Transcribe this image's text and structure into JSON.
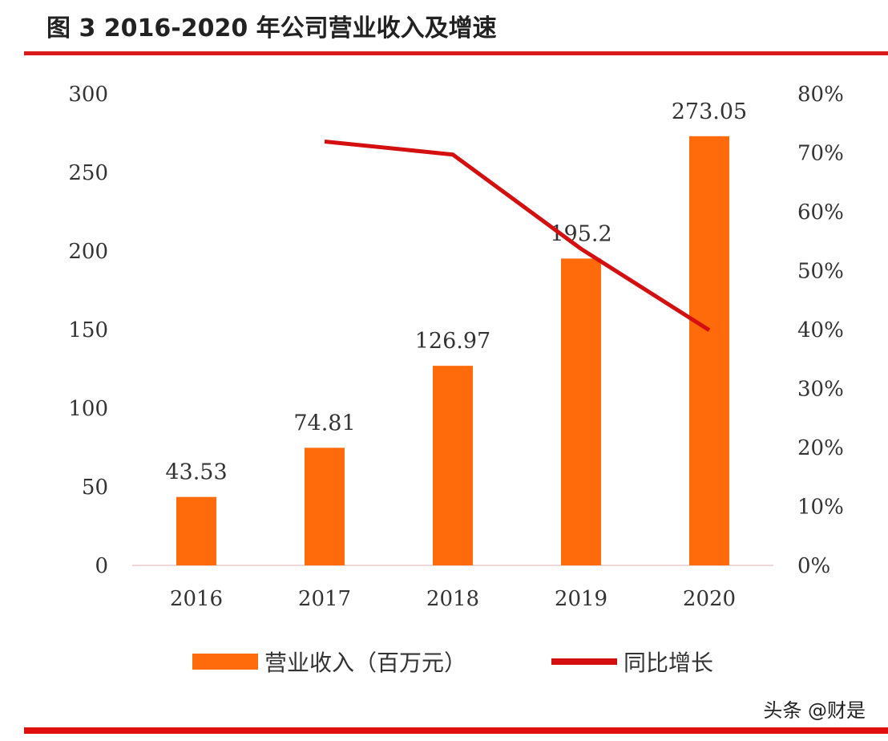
{
  "chart_data": {
    "type": "bar",
    "title": "图 3 2016-2020 年公司营业收入及增速",
    "categories": [
      "2016",
      "2017",
      "2018",
      "2019",
      "2020"
    ],
    "series": [
      {
        "name": "营业收入（百万元）",
        "type": "bar",
        "axis": "left",
        "color": "#ff6a0a",
        "values": [
          43.53,
          74.81,
          126.97,
          195.2,
          273.05
        ],
        "labels": [
          "43.53",
          "74.81",
          "126.97",
          "195.2",
          "273.05"
        ]
      },
      {
        "name": "同比增长",
        "type": "line",
        "axis": "right",
        "color": "#d40f0f",
        "values": [
          null,
          71.9,
          69.7,
          53.7,
          39.9
        ]
      }
    ],
    "ylim": [
      0,
      300
    ],
    "yticks": [
      "0",
      "50",
      "100",
      "150",
      "200",
      "250",
      "300"
    ],
    "y2lim": [
      0,
      80
    ],
    "y2ticks": [
      "0%",
      "10%",
      "20%",
      "30%",
      "40%",
      "50%",
      "60%",
      "70%",
      "80%"
    ],
    "grid": false,
    "legend": "bottom"
  },
  "watermark": "头条 @财是"
}
